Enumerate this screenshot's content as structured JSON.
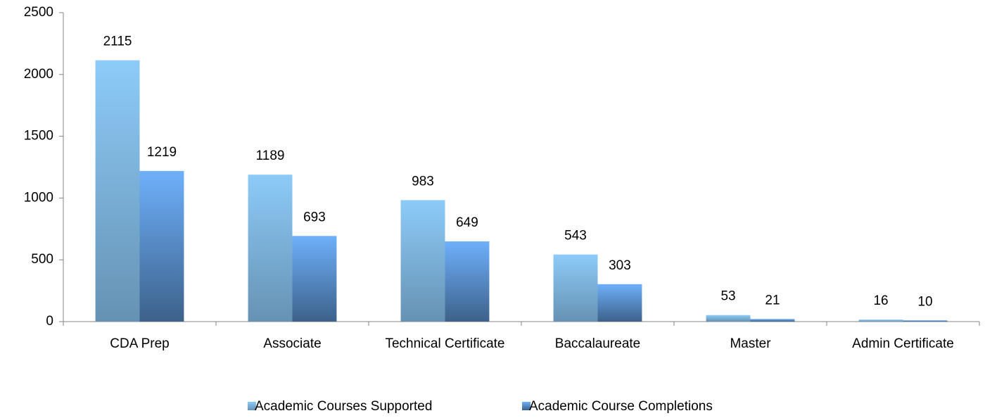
{
  "chart_data": {
    "type": "bar",
    "categories": [
      "CDA Prep",
      "Associate",
      "Technical Certificate",
      "Baccalaureate",
      "Master",
      "Admin Certificate"
    ],
    "series": [
      {
        "name": "Academic Courses Supported",
        "color": "#8dcbf8",
        "values": [
          2115,
          1189,
          983,
          543,
          53,
          16
        ]
      },
      {
        "name": "Academic Course Completions",
        "color": "#6eb0fb",
        "values": [
          1219,
          693,
          649,
          303,
          21,
          10
        ]
      }
    ],
    "ylim": [
      0,
      2500
    ],
    "yticks": [
      0,
      500,
      1000,
      1500,
      2000,
      2500
    ],
    "legend": "bottom"
  }
}
